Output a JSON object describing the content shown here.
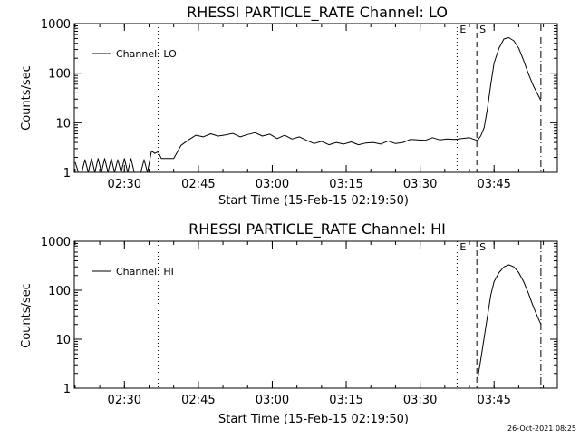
{
  "timestamp": "26-Oct-2021 08:25",
  "chart_data": [
    {
      "type": "line",
      "title": "RHESSI PARTICLE_RATE Channel: LO",
      "xlabel": "Start Time (15-Feb-15 02:19:50)",
      "ylabel": "Counts/sec",
      "y_scale": "log",
      "ylim": [
        1,
        1000
      ],
      "xlim": [
        "02:19:50",
        "03:57:50"
      ],
      "x_tick_labels": [
        "02:30",
        "02:45",
        "03:00",
        "03:15",
        "03:30",
        "03:45"
      ],
      "y_tick_labels": [
        "1",
        "10",
        "100",
        "1000"
      ],
      "y_tick_values": [
        1,
        10,
        100,
        1000
      ],
      "legend": {
        "position": "top-left",
        "entries": [
          "Channel: LO"
        ]
      },
      "grid": false,
      "markers": [
        {
          "label": "E",
          "time": "03:37:30",
          "style": "dotted"
        },
        {
          "label": "S",
          "time": "03:41:30",
          "style": "dashed"
        },
        {
          "label": "",
          "time": "03:54:30",
          "style": "dash-dot"
        },
        {
          "label": "",
          "time": "02:36:50",
          "style": "dotted"
        }
      ],
      "series": [
        {
          "name": "Channel: LO",
          "x": [
            "02:20:00",
            "02:20:40",
            "02:21:20",
            "02:22:00",
            "02:22:40",
            "02:23:20",
            "02:24:00",
            "02:24:40",
            "02:25:20",
            "02:26:00",
            "02:26:40",
            "02:27:20",
            "02:28:00",
            "02:28:40",
            "02:29:20",
            "02:30:00",
            "02:30:40",
            "02:31:20",
            "02:32:00",
            "02:32:40",
            "02:33:20",
            "02:34:00",
            "02:34:40",
            "02:35:30",
            "02:36:10",
            "02:36:50",
            "02:37:30",
            "02:38:30",
            "02:40:00",
            "02:41:30",
            "02:43:00",
            "02:44:30",
            "02:46:00",
            "02:47:30",
            "02:49:00",
            "02:50:30",
            "02:52:00",
            "02:53:30",
            "02:55:00",
            "02:56:30",
            "02:58:00",
            "02:59:30",
            "03:01:00",
            "03:02:30",
            "03:04:00",
            "03:05:30",
            "03:07:00",
            "03:08:30",
            "03:10:00",
            "03:11:30",
            "03:13:00",
            "03:14:30",
            "03:16:00",
            "03:17:30",
            "03:19:00",
            "03:20:30",
            "03:22:00",
            "03:23:30",
            "03:25:00",
            "03:26:30",
            "03:28:00",
            "03:29:30",
            "03:31:00",
            "03:32:30",
            "03:34:00",
            "03:35:30",
            "03:37:00",
            "03:38:30",
            "03:40:00",
            "03:41:00",
            "03:41:40",
            "03:42:20",
            "03:43:00",
            "03:43:40",
            "03:44:20",
            "03:45:00",
            "03:46:00",
            "03:47:00",
            "03:48:00",
            "03:49:00",
            "03:50:00",
            "03:51:00",
            "03:52:00",
            "03:53:00",
            "03:54:00",
            "03:54:30"
          ],
          "values": [
            1.6,
            1,
            1,
            1.8,
            1,
            1.9,
            1,
            1.9,
            1,
            1.9,
            1,
            1.9,
            1,
            1.8,
            1,
            1.9,
            1,
            1.9,
            1,
            1,
            1,
            1.8,
            1,
            2.7,
            2.4,
            2.6,
            1.9,
            1.9,
            1.9,
            3.5,
            4.5,
            5.6,
            5.2,
            6.0,
            5.4,
            5.7,
            6.1,
            5.2,
            5.8,
            6.3,
            5.4,
            5.9,
            4.8,
            5.6,
            4.7,
            5.2,
            4.4,
            3.8,
            4.2,
            3.6,
            4.0,
            3.7,
            4.1,
            3.6,
            3.9,
            4.0,
            3.7,
            4.3,
            3.8,
            4.0,
            4.6,
            4.5,
            4.4,
            5.0,
            4.5,
            4.7,
            4.6,
            4.8,
            5.0,
            4.6,
            4.4,
            5.5,
            8,
            20,
            60,
            160,
            320,
            490,
            520,
            450,
            320,
            180,
            95,
            55,
            35,
            28
          ]
        }
      ]
    },
    {
      "type": "line",
      "title": "RHESSI PARTICLE_RATE Channel: HI",
      "xlabel": "Start Time (15-Feb-15 02:19:50)",
      "ylabel": "Counts/sec",
      "y_scale": "log",
      "ylim": [
        1,
        1000
      ],
      "xlim": [
        "02:19:50",
        "03:57:50"
      ],
      "x_tick_labels": [
        "02:30",
        "02:45",
        "03:00",
        "03:15",
        "03:30",
        "03:45"
      ],
      "y_tick_labels": [
        "1",
        "10",
        "100",
        "1000"
      ],
      "y_tick_values": [
        1,
        10,
        100,
        1000
      ],
      "legend": {
        "position": "top-left",
        "entries": [
          "Channel: HI"
        ]
      },
      "grid": false,
      "markers": [
        {
          "label": "E",
          "time": "03:37:30",
          "style": "dotted"
        },
        {
          "label": "S",
          "time": "03:41:30",
          "style": "dashed"
        },
        {
          "label": "",
          "time": "03:54:30",
          "style": "dash-dot"
        },
        {
          "label": "",
          "time": "02:36:50",
          "style": "dotted"
        }
      ],
      "series": [
        {
          "name": "Channel: HI",
          "x": [
            "03:41:40",
            "03:42:20",
            "03:43:00",
            "03:43:40",
            "03:44:20",
            "03:45:00",
            "03:46:00",
            "03:47:00",
            "03:48:00",
            "03:49:00",
            "03:50:00",
            "03:51:00",
            "03:52:00",
            "03:53:00",
            "03:54:00",
            "03:54:30"
          ],
          "values": [
            1.6,
            4,
            11,
            30,
            80,
            150,
            230,
            300,
            330,
            300,
            230,
            150,
            85,
            45,
            26,
            20
          ]
        }
      ]
    }
  ]
}
